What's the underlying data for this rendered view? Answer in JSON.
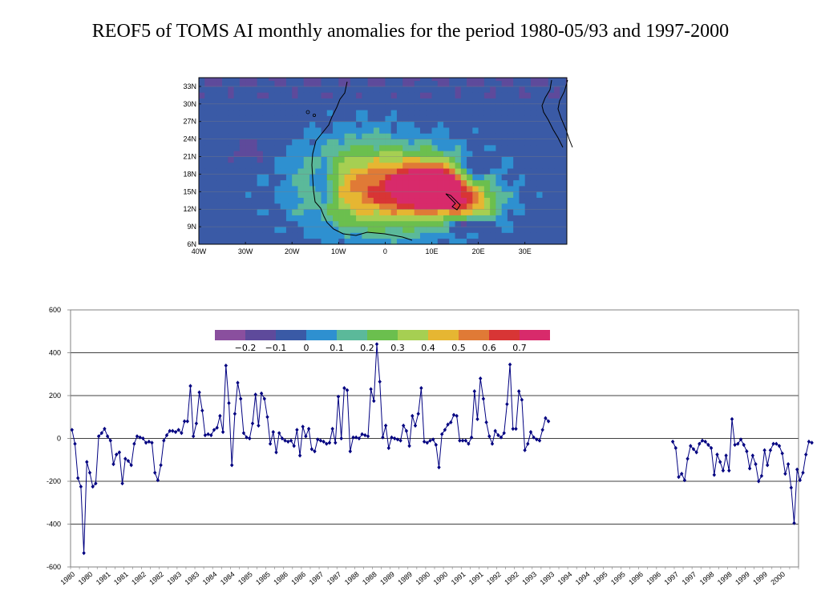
{
  "page": {
    "title": "REOF5 of TOMS AI monthly anomalies for the period 1980-05/93 and 1997-2000"
  },
  "colors": {
    "line": "#000080",
    "ocean": "#3a5aa6",
    "grid": "#808080"
  },
  "chart_data": [
    {
      "type": "heatmap",
      "title": "",
      "x_tick_labels": [
        "40W",
        "30W",
        "20W",
        "10W",
        "0",
        "10E",
        "20E",
        "30E"
      ],
      "y_tick_labels": [
        "33N",
        "30N",
        "27N",
        "24N",
        "21N",
        "18N",
        "15N",
        "12N",
        "9N",
        "6N"
      ],
      "xlim": [
        -40,
        39
      ],
      "ylim": [
        6,
        34.5
      ],
      "grid": true,
      "features": [
        {
          "type": "peak",
          "lon": 10,
          "lat": 16,
          "value": 0.75,
          "sx": 6,
          "sy": 3.6
        },
        {
          "type": "ridge",
          "lon": 4,
          "lat": 15,
          "value": 0.45,
          "sx": 16,
          "sy": 6
        },
        {
          "type": "ridge",
          "lon": 18,
          "lat": 13,
          "value": 0.35,
          "sx": 6,
          "sy": 3
        },
        {
          "type": "ridge",
          "lon": -4,
          "lat": 17,
          "value": 0.25,
          "sx": 14,
          "sy": 8
        },
        {
          "type": "low",
          "lon": 19,
          "lat": 19,
          "value": -0.2,
          "sx": 3,
          "sy": 2
        },
        {
          "type": "low",
          "lon": 17,
          "lat": 9.5,
          "value": -0.25,
          "sx": 4,
          "sy": 1.2
        },
        {
          "type": "low",
          "lon": -13,
          "lat": 16,
          "value": -0.22,
          "sx": 2.5,
          "sy": 4
        },
        {
          "type": "low",
          "lon": -29,
          "lat": 22,
          "value": -0.12,
          "sx": 4,
          "sy": 2
        }
      ],
      "colorbar": {
        "labels": [
          "−0.2",
          "−0.1",
          "0",
          "0.1",
          "0.2",
          "0.3",
          "0.4",
          "0.5",
          "0.6",
          "0.7"
        ],
        "colors": [
          "#8a4f9e",
          "#5e4a9b",
          "#3a5aa6",
          "#2e90d0",
          "#5bb99a",
          "#6bbf4e",
          "#a6cf52",
          "#e6b632",
          "#e07a36",
          "#d83535",
          "#d82a6b"
        ]
      }
    },
    {
      "type": "line",
      "title": "",
      "ylim": [
        -600,
        600
      ],
      "y_tick_labels": [
        "600",
        "400",
        "200",
        "0",
        "-200",
        "-400",
        "-600"
      ],
      "x_tick_labels": [
        "1980",
        "1980",
        "1981",
        "1981",
        "1982",
        "1982",
        "1983",
        "1983",
        "1984",
        "1984",
        "1985",
        "1985",
        "1986",
        "1986",
        "1987",
        "1987",
        "1988",
        "1988",
        "1989",
        "1989",
        "1990",
        "1990",
        "1991",
        "1991",
        "1992",
        "1992",
        "1993",
        "1993",
        "1994",
        "1994",
        "1995",
        "1995",
        "1996",
        "1996",
        "1997",
        "1997",
        "1998",
        "1998",
        "1999",
        "1999",
        "2000"
      ],
      "grid": true,
      "series": [
        {
          "segment": "1980-1993",
          "values": [
            40,
            -25,
            -185,
            -225,
            -535,
            -110,
            -160,
            -225,
            -210,
            10,
            25,
            45,
            10,
            -10,
            -120,
            -75,
            -65,
            -210,
            -95,
            -105,
            -125,
            -25,
            10,
            5,
            0,
            -20,
            -15,
            -20,
            -160,
            -195,
            -125,
            -10,
            15,
            35,
            35,
            30,
            40,
            25,
            80,
            80,
            245,
            10,
            70,
            215,
            130,
            15,
            20,
            15,
            40,
            50,
            105,
            30,
            340,
            165,
            -125,
            115,
            260,
            185,
            25,
            5,
            0,
            70,
            205,
            60,
            210,
            185,
            100,
            -25,
            30,
            -65,
            25,
            0,
            -10,
            -15,
            -10,
            -35,
            40,
            -80,
            55,
            10,
            45,
            -50,
            -60,
            -5,
            -10,
            -15,
            -25,
            -20,
            45,
            -20,
            195,
            0,
            235,
            225,
            -60,
            5,
            5,
            0,
            20,
            15,
            10,
            230,
            175,
            440,
            265,
            5,
            60,
            -45,
            5,
            0,
            -5,
            -10,
            60,
            35,
            -35,
            105,
            60,
            115,
            235,
            -15,
            -20,
            -10,
            -5,
            -30,
            -135,
            20,
            40,
            65,
            75,
            110,
            105,
            -10,
            -10,
            -10,
            -25,
            5,
            220,
            90,
            280,
            185,
            75,
            10,
            -25,
            35,
            15,
            5,
            25,
            160,
            345,
            45,
            45,
            220,
            180,
            -55,
            -25,
            30,
            5,
            -5,
            -10,
            40,
            95,
            80
          ]
        },
        {
          "segment": "1997-2000",
          "values": [
            -15,
            -45,
            -180,
            -165,
            -195,
            -95,
            -35,
            -50,
            -65,
            -25,
            -10,
            -15,
            -30,
            -45,
            -170,
            -75,
            -110,
            -150,
            -80,
            -150,
            90,
            -30,
            -25,
            -5,
            -30,
            -60,
            -140,
            -80,
            -120,
            -200,
            -175,
            -55,
            -125,
            -55,
            -25,
            -25,
            -35,
            -70,
            -165,
            -120,
            -230,
            -395,
            -145,
            -195,
            -160,
            -75,
            -15,
            -20
          ]
        }
      ]
    }
  ]
}
